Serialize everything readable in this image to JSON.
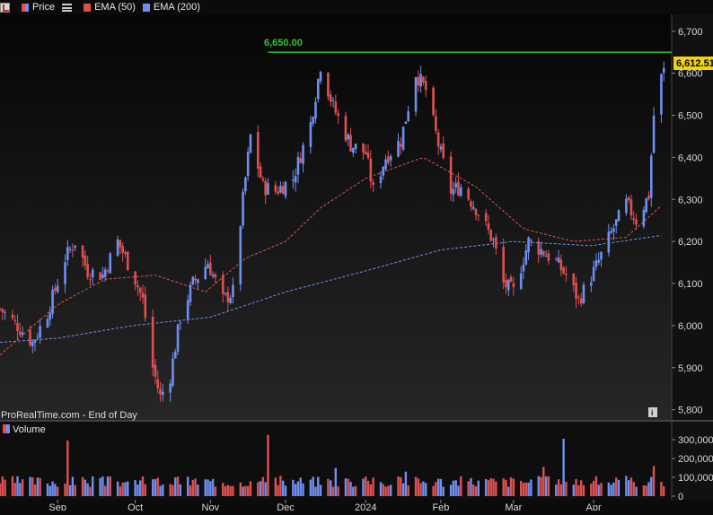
{
  "toolbar": {
    "price_label": "Price",
    "ema50_label": "EMA (50)",
    "ema200_label": "EMA (200)"
  },
  "volume_panel": {
    "label": "Volume"
  },
  "footer": {
    "source_text": "ProRealTime.com - End of Day"
  },
  "price_badge": "6,612.51",
  "resistance_label": "6,650.00",
  "colors": {
    "up": "#6f8ff0",
    "down": "#e05050",
    "ema50": "#e05050",
    "ema200": "#6f8ff0",
    "resistance": "#34c434",
    "badge_bg": "#f2d20c",
    "background_top": "#060606",
    "background_bottom": "#262626"
  },
  "chart_data": [
    {
      "type": "candlestick",
      "y_axis": {
        "range": [
          5780,
          6740
        ],
        "ticks": [
          "6,700",
          "6,600",
          "6,500",
          "6,400",
          "6,300",
          "6,200",
          "6,100",
          "6,000",
          "5,900",
          "5,800"
        ],
        "tick_values": [
          6700,
          6600,
          6500,
          6400,
          6300,
          6200,
          6100,
          6000,
          5900,
          5800
        ]
      },
      "x_axis": {
        "labels": [
          "Sep",
          "Oct",
          "Nov",
          "Dec",
          "2024",
          "Feb",
          "Mar",
          "Apr"
        ],
        "label_dates": [
          "2023-09-01",
          "2023-10-02",
          "2023-11-01",
          "2023-12-01",
          "2024-01-02",
          "2024-02-01",
          "2024-03-01",
          "2024-04-02"
        ],
        "range": [
          "2023-08-09",
          "2024-05-01"
        ]
      },
      "reference_lines": [
        {
          "label": "6,650.00",
          "value": 6650,
          "from_date": "2023-11-24"
        }
      ],
      "last_price": 6612.51,
      "series": [
        {
          "name": "Price",
          "anchors": [
            [
              "2023-08-09",
              6040
            ],
            [
              "2023-08-16",
              6000
            ],
            [
              "2023-08-22",
              5960
            ],
            [
              "2023-08-28",
              6030
            ],
            [
              "2023-09-04",
              6160
            ],
            [
              "2023-09-08",
              6200
            ],
            [
              "2023-09-13",
              6130
            ],
            [
              "2023-09-19",
              6120
            ],
            [
              "2023-09-25",
              6200
            ],
            [
              "2023-10-02",
              6110
            ],
            [
              "2023-10-05",
              6060
            ],
            [
              "2023-10-09",
              5900
            ],
            [
              "2023-10-12",
              5830
            ],
            [
              "2023-10-16",
              5880
            ],
            [
              "2023-10-20",
              6020
            ],
            [
              "2023-10-25",
              6100
            ],
            [
              "2023-10-31",
              6150
            ],
            [
              "2023-11-06",
              6060
            ],
            [
              "2023-11-10",
              6080
            ],
            [
              "2023-11-14",
              6300
            ],
            [
              "2023-11-17",
              6450
            ],
            [
              "2023-11-22",
              6330
            ],
            [
              "2023-11-27",
              6320
            ],
            [
              "2023-12-04",
              6350
            ],
            [
              "2023-12-11",
              6480
            ],
            [
              "2023-12-15",
              6620
            ],
            [
              "2023-12-20",
              6520
            ],
            [
              "2023-12-27",
              6430
            ],
            [
              "2024-01-02",
              6410
            ],
            [
              "2024-01-05",
              6320
            ],
            [
              "2024-01-10",
              6400
            ],
            [
              "2024-01-16",
              6440
            ],
            [
              "2024-01-22",
              6600
            ],
            [
              "2024-01-26",
              6560
            ],
            [
              "2024-01-31",
              6430
            ],
            [
              "2024-02-05",
              6320
            ],
            [
              "2024-02-09",
              6330
            ],
            [
              "2024-02-15",
              6280
            ],
            [
              "2024-02-22",
              6200
            ],
            [
              "2024-02-26",
              6100
            ],
            [
              "2024-03-01",
              6080
            ],
            [
              "2024-03-07",
              6200
            ],
            [
              "2024-03-12",
              6180
            ],
            [
              "2024-03-18",
              6150
            ],
            [
              "2024-03-22",
              6120
            ],
            [
              "2024-03-27",
              6060
            ],
            [
              "2024-04-03",
              6140
            ],
            [
              "2024-04-09",
              6220
            ],
            [
              "2024-04-15",
              6290
            ],
            [
              "2024-04-19",
              6250
            ],
            [
              "2024-04-24",
              6310
            ],
            [
              "2024-04-26",
              6500
            ],
            [
              "2024-04-29",
              6590
            ],
            [
              "2024-04-30",
              6612.51
            ]
          ]
        },
        {
          "name": "EMA (50)",
          "anchors": [
            [
              "2023-08-09",
              5930
            ],
            [
              "2023-09-01",
              6050
            ],
            [
              "2023-09-20",
              6110
            ],
            [
              "2023-10-10",
              6120
            ],
            [
              "2023-10-30",
              6080
            ],
            [
              "2023-11-15",
              6160
            ],
            [
              "2023-12-01",
              6200
            ],
            [
              "2023-12-15",
              6280
            ],
            [
              "2024-01-02",
              6350
            ],
            [
              "2024-01-25",
              6400
            ],
            [
              "2024-02-15",
              6330
            ],
            [
              "2024-03-05",
              6230
            ],
            [
              "2024-03-25",
              6200
            ],
            [
              "2024-04-15",
              6210
            ],
            [
              "2024-04-30",
              6290
            ]
          ]
        },
        {
          "name": "EMA (200)",
          "anchors": [
            [
              "2023-08-09",
              5960
            ],
            [
              "2023-09-01",
              5970
            ],
            [
              "2023-10-01",
              6000
            ],
            [
              "2023-11-01",
              6020
            ],
            [
              "2023-12-01",
              6080
            ],
            [
              "2024-01-02",
              6130
            ],
            [
              "2024-02-01",
              6180
            ],
            [
              "2024-03-01",
              6200
            ],
            [
              "2024-04-01",
              6190
            ],
            [
              "2024-04-30",
              6215
            ]
          ]
        }
      ]
    },
    {
      "type": "bar",
      "name": "Volume",
      "y_axis": {
        "range": [
          0,
          300000
        ],
        "ticks": [
          "300,000",
          "200,000",
          "100,000",
          "0"
        ],
        "tick_values": [
          300000,
          200000,
          100000,
          0
        ]
      },
      "series": [
        {
          "name": "Volume",
          "baseline": 80000,
          "spikes": [
            [
              "2023-09-05",
              295000
            ],
            [
              "2023-11-24",
              325000
            ],
            [
              "2024-03-21",
              305000
            ],
            [
              "2024-03-13",
              155000
            ],
            [
              "2024-04-26",
              160000
            ],
            [
              "2023-12-21",
              150000
            ],
            [
              "2024-01-18",
              130000
            ]
          ]
        }
      ]
    }
  ]
}
